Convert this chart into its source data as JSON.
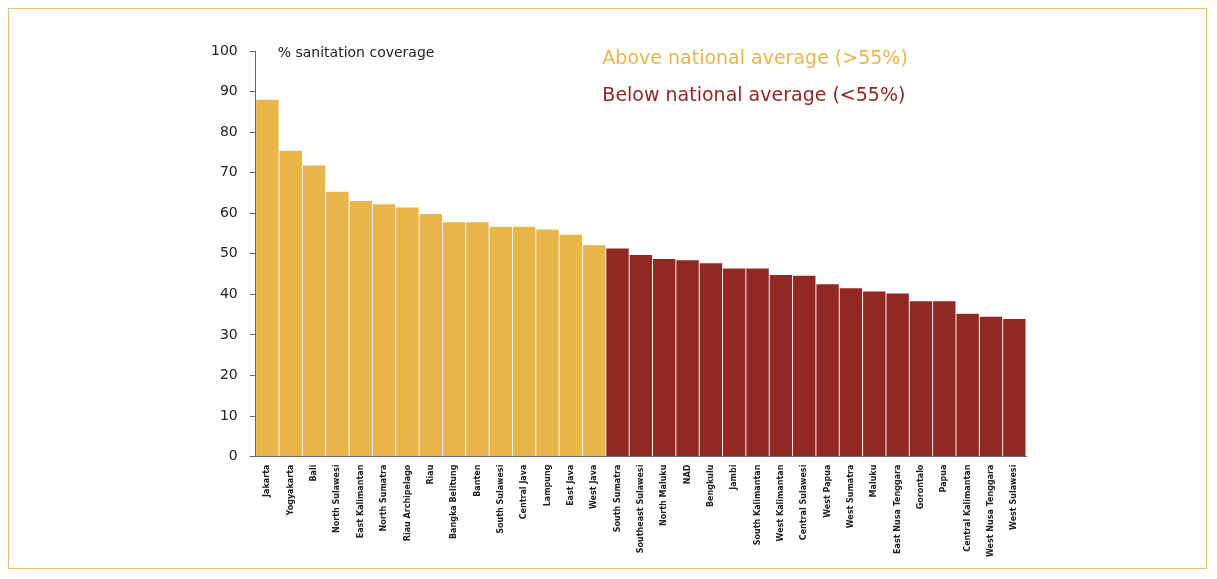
{
  "chart_data": {
    "type": "bar",
    "ylabel": "% sanitation coverage",
    "categories": [
      "Jakarta",
      "Yogyakarta",
      "Bali",
      "North Sulawesi",
      "East Kalimantan",
      "North Sumatra",
      "Riau Archipelago",
      "Riau",
      "Bangka Belitung",
      "Banten",
      "South Sulawesi",
      "Central Java",
      "Lampung",
      "East Java",
      "West Java",
      "South Sumatra",
      "Southeast Sulawesi",
      "North Maluku",
      "NAD",
      "Bengkulu",
      "Jambi",
      "South Kalimantan",
      "West Kalimantan",
      "Central Sulawesi",
      "West Papua",
      "West Sumatra",
      "Maluku",
      "East Nusa Tenggara",
      "Gorontalo",
      "Papua",
      "Central Kalimantan",
      "West Nusa Tenggara",
      "West Sulawesi"
    ],
    "series": [
      {
        "name": "Above national average (>55%)",
        "color": "#e9b649",
        "values": [
          88,
          75.4,
          71.8,
          65.3,
          63,
          62.2,
          61.4,
          59.8,
          57.8,
          57.8,
          56.7,
          56.7,
          56,
          54.7,
          52.1,
          null,
          null,
          null,
          null,
          null,
          null,
          null,
          null,
          null,
          null,
          null,
          null,
          null,
          null,
          null,
          null,
          null,
          null
        ]
      },
      {
        "name": "Below national average (<55%)",
        "color": "#922824",
        "values": [
          null,
          null,
          null,
          null,
          null,
          null,
          null,
          null,
          null,
          null,
          null,
          null,
          null,
          null,
          null,
          51.3,
          49.7,
          48.7,
          48.4,
          47.7,
          46.4,
          46.4,
          44.8,
          44.6,
          42.5,
          41.5,
          40.7,
          40.2,
          38.3,
          38.3,
          35.2,
          34.5,
          33.9
        ]
      }
    ],
    "stacked": true,
    "ylim": [
      0,
      100
    ],
    "yticks": [
      0,
      10,
      20,
      30,
      40,
      50,
      60,
      70,
      80,
      90,
      100
    ],
    "grid": false,
    "legend": "top"
  }
}
